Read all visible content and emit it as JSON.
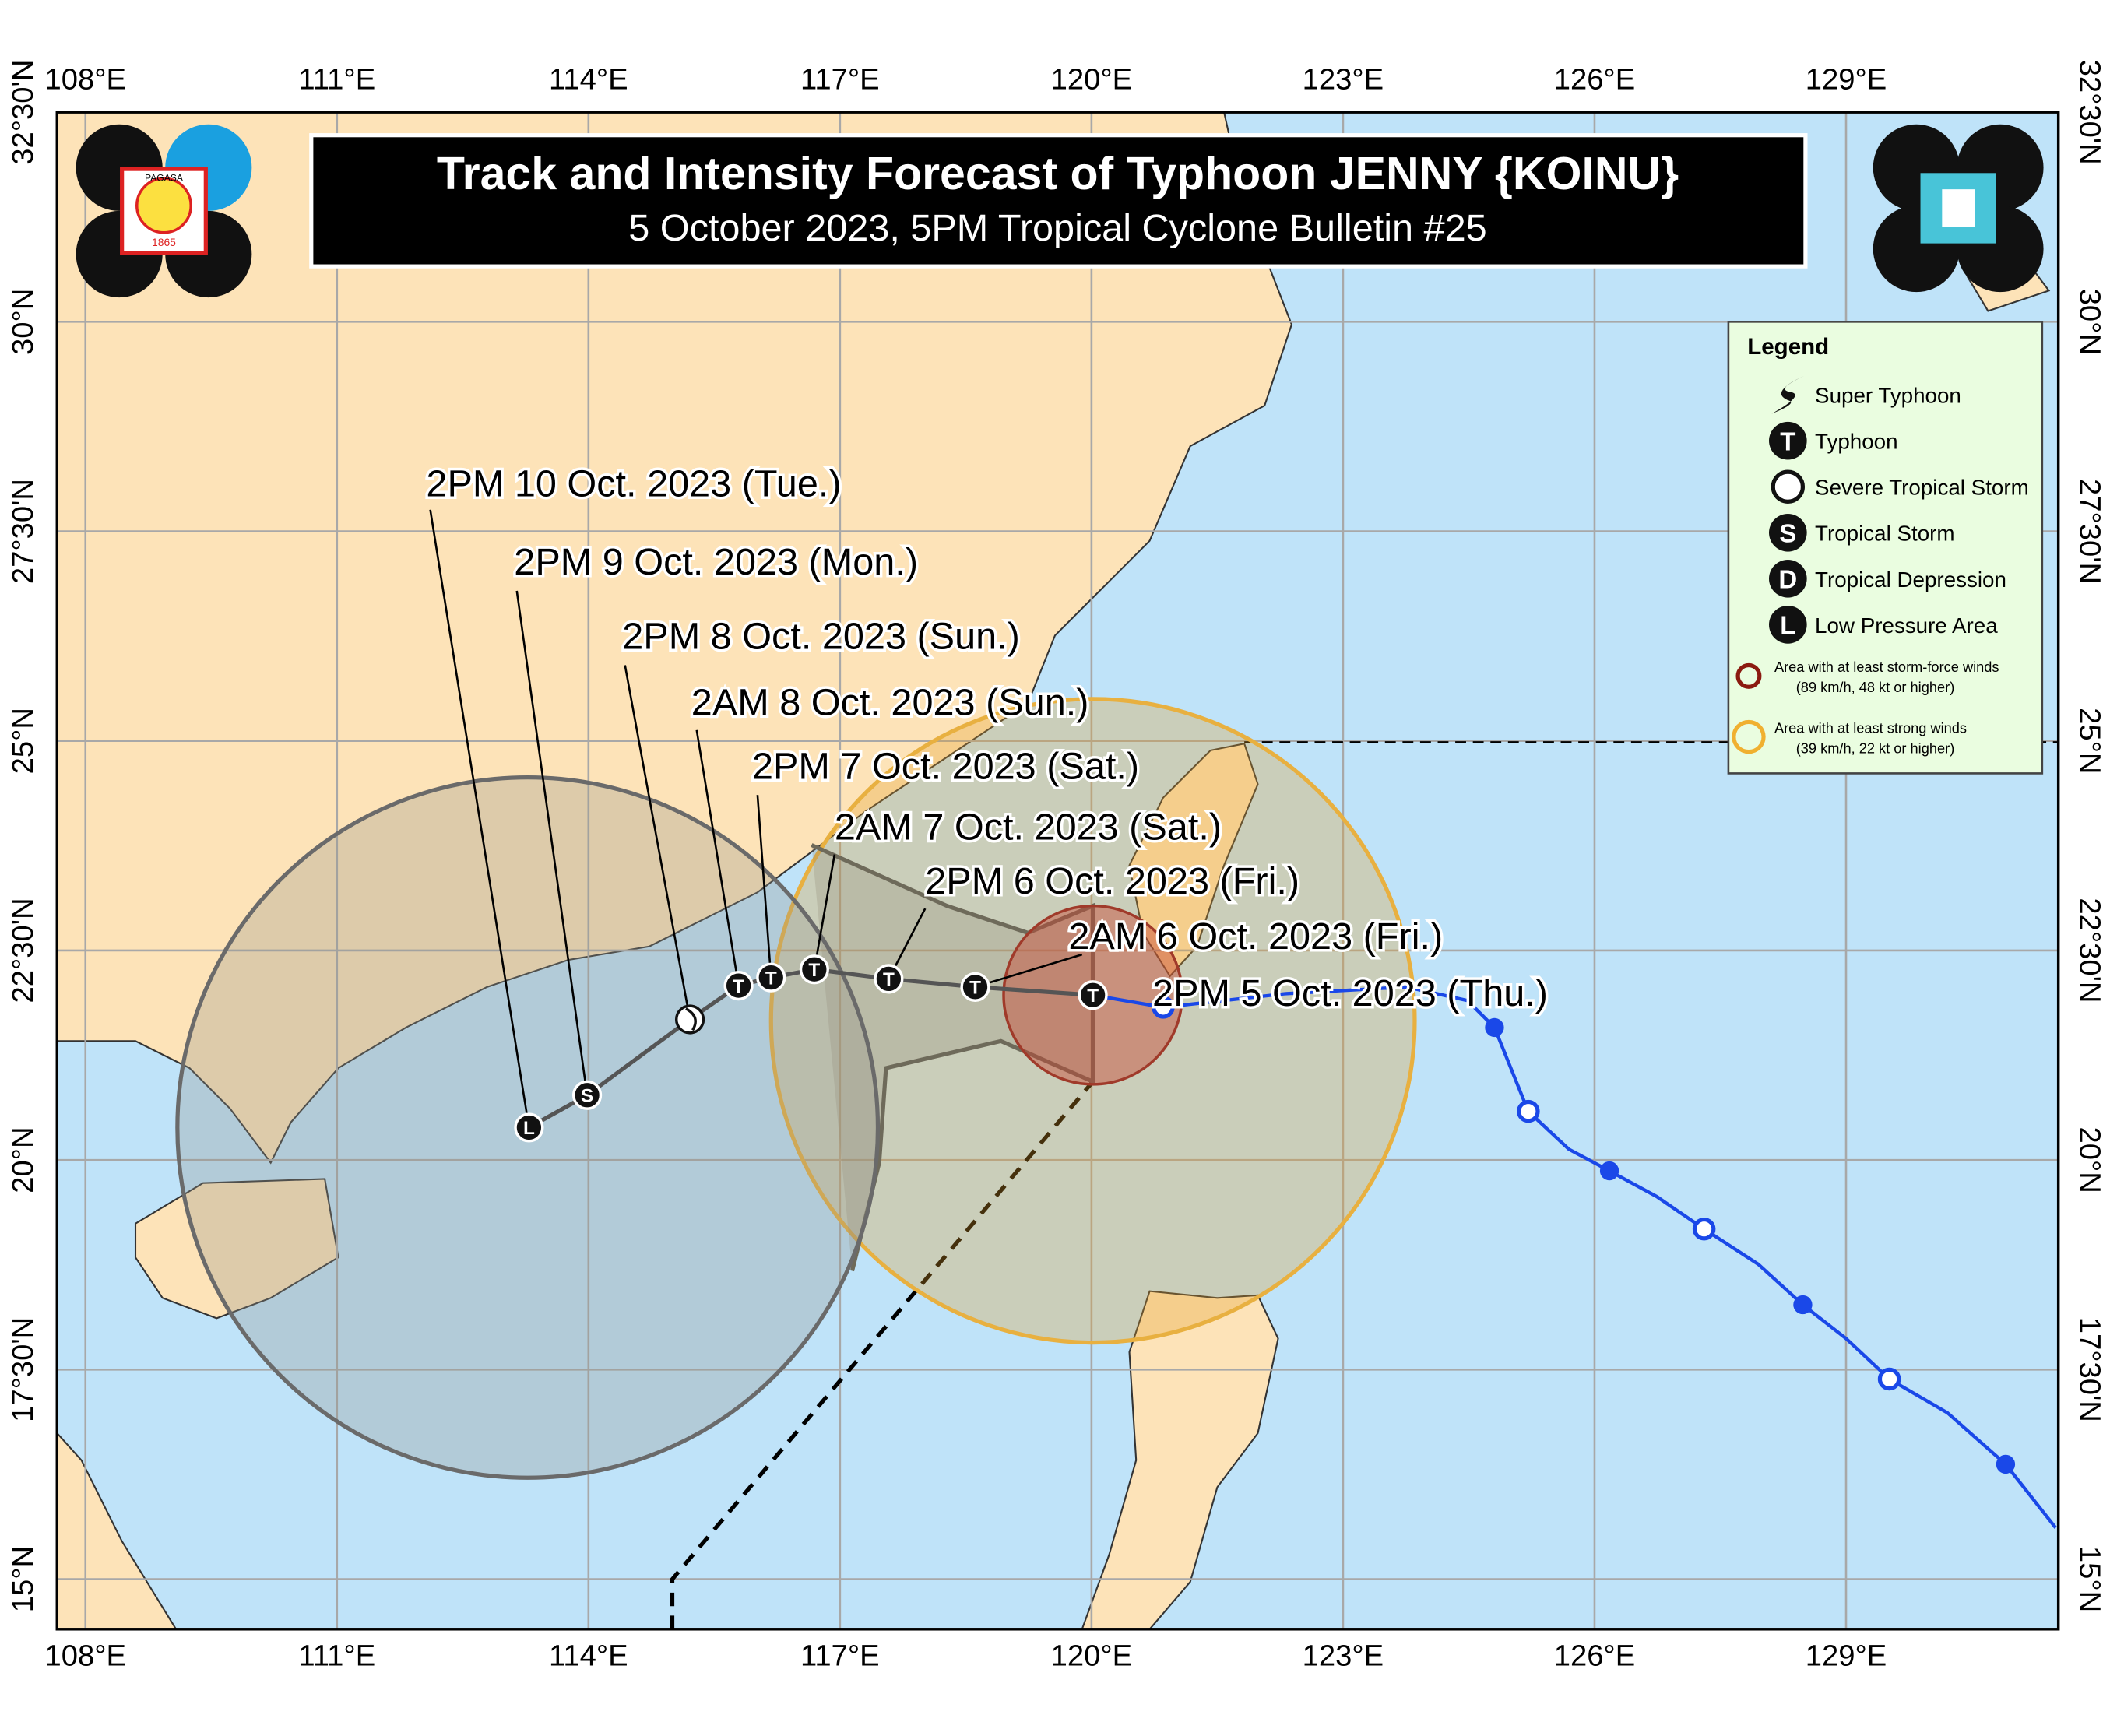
{
  "header": {
    "title": "Track and Intensity Forecast of Typhoon JENNY {KOINU}",
    "subtitle": "5 October 2023, 5PM Tropical Cyclone Bulletin #25"
  },
  "logo": {
    "name": "PAGASA",
    "year": "1865"
  },
  "longitude_labels": [
    "108°E",
    "111°E",
    "114°E",
    "117°E",
    "120°E",
    "123°E",
    "126°E",
    "129°E"
  ],
  "latitude_labels": [
    "32°30'N",
    "30°N",
    "27°30'N",
    "25°N",
    "22°30'N",
    "20°N",
    "17°30'N",
    "15°N"
  ],
  "forecast_track": [
    {
      "label": "2PM 5 Oct. 2023 (Thu.)",
      "symbol": "T"
    },
    {
      "label": "2AM 6 Oct. 2023 (Fri.)",
      "symbol": "T"
    },
    {
      "label": "2PM 6 Oct. 2023 (Fri.)",
      "symbol": "T"
    },
    {
      "label": "2AM 7 Oct. 2023 (Sat.)",
      "symbol": "T"
    },
    {
      "label": "2PM 7 Oct. 2023 (Sat.)",
      "symbol": "T"
    },
    {
      "label": "2AM 8 Oct. 2023 (Sun.)",
      "symbol": "T"
    },
    {
      "label": "2PM 8 Oct. 2023 (Sun.)"
    },
    {
      "label": "2PM 9 Oct. 2023 (Mon.)",
      "symbol": "S"
    },
    {
      "label": "2PM 10 Oct. 2023 (Tue.)",
      "symbol": "L"
    }
  ],
  "legend": {
    "title": "Legend",
    "items": [
      {
        "text": "Super Typhoon"
      },
      {
        "text": "Typhoon",
        "symbol": "T"
      },
      {
        "text": "Severe Tropical Storm"
      },
      {
        "text": "Tropical Storm",
        "symbol": "S"
      },
      {
        "text": "Tropical Depression",
        "symbol": "D"
      },
      {
        "text": "Low Pressure Area",
        "symbol": "L"
      }
    ],
    "areas": [
      {
        "text": "Area with at least storm-force winds",
        "detail": "(89 km/h, 48 kt or higher)"
      },
      {
        "text": "Area with at least strong winds",
        "detail": "(39 km/h, 22 kt or higher)"
      }
    ]
  }
}
